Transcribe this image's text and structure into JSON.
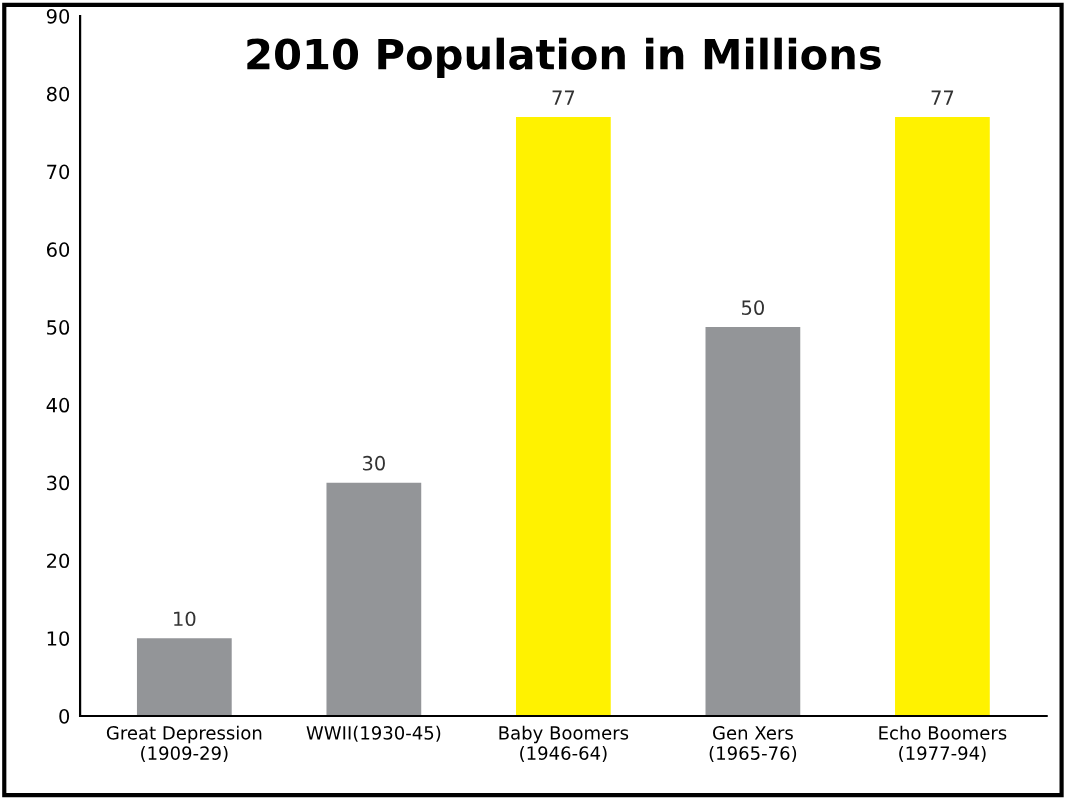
{
  "chart_data": {
    "type": "bar",
    "title": "2010 Population in Millions",
    "categories": [
      "Great Depression\n(1909-29)",
      "WWII(1930-45)",
      "Baby Boomers\n(1946-64)",
      "Gen Xers\n(1965-76)",
      "Echo Boomers\n(1977-94)"
    ],
    "values": [
      10,
      30,
      77,
      50,
      77
    ],
    "colors": [
      "#939598",
      "#939598",
      "#fff200",
      "#939598",
      "#fff200"
    ],
    "ylim": [
      0,
      90
    ],
    "yticks": [
      0,
      10,
      20,
      30,
      40,
      50,
      60,
      70,
      80,
      90
    ],
    "grid": false,
    "data_labels": true
  }
}
